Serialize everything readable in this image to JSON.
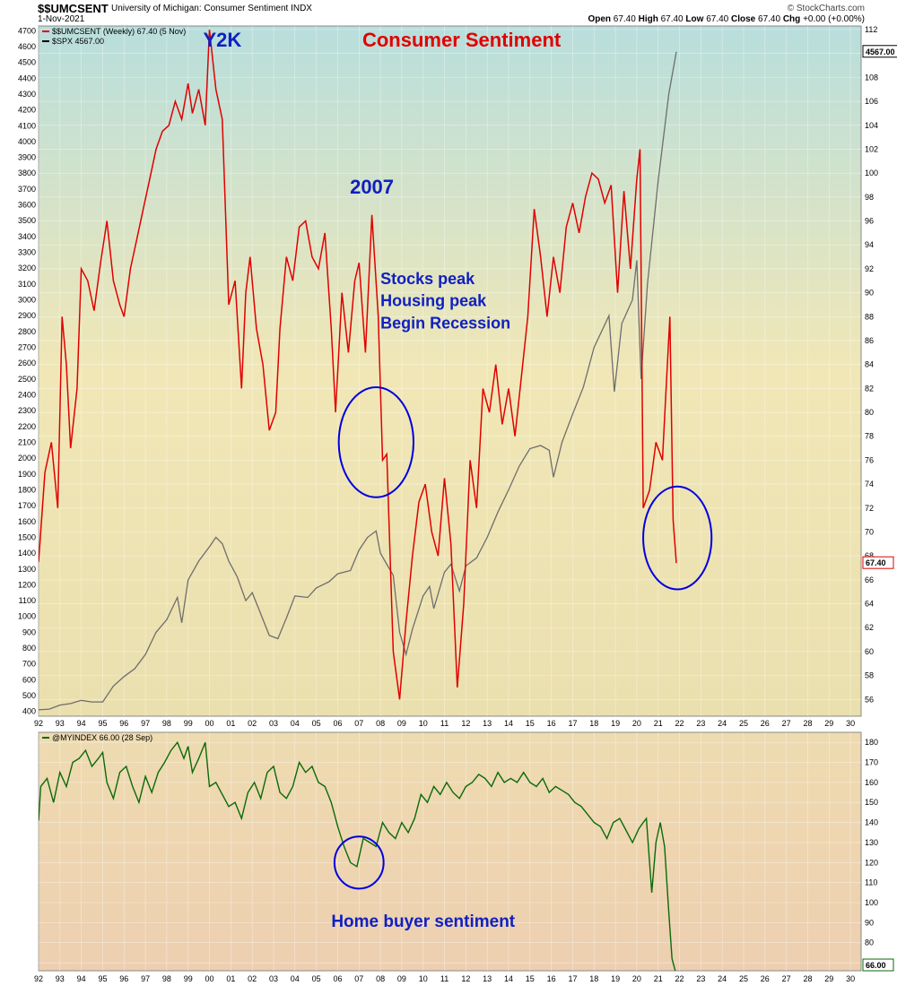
{
  "header": {
    "symbol": "$$UMCSENT",
    "description": "University of Michigan: Consumer Sentiment INDX",
    "date": "1-Nov-2021",
    "logo": "© StockCharts.com",
    "ohlc": {
      "open_label": "Open",
      "open": "67.40",
      "high_label": "High",
      "high": "67.40",
      "low_label": "Low",
      "low": "67.40",
      "close_label": "Close",
      "close": "67.40",
      "chg_label": "Chg",
      "chg": "+0.00 (+0.00%)"
    }
  },
  "colors": {
    "sentiment": "#e00000",
    "spx": "#6e6e6e",
    "myindex": "#0a6a0a",
    "annotation_red": "#e00000",
    "annotation_blue": "#1020c0",
    "circle": "#0000e0"
  },
  "chart_data": [
    {
      "type": "line",
      "legend": [
        {
          "name": "$$UMCSENT (Weekly) 67.40 (5 Nov)",
          "color": "#e00000"
        },
        {
          "name": "$SPX 4567.00",
          "color": "#000000"
        }
      ],
      "title": "Consumer Sentiment",
      "annotations": [
        {
          "text": "Y2K",
          "x": 2000.6,
          "y": 4600,
          "color": "#1020c0"
        },
        {
          "text": "Consumer Sentiment",
          "x": 2011.8,
          "y": 4600,
          "color": "#e00000"
        },
        {
          "text": "2007",
          "x": 2007.6,
          "y": 3670,
          "color": "#1020c0"
        },
        {
          "text": "Stocks peak",
          "x": 2008.0,
          "y": 3100,
          "color": "#1020c0"
        },
        {
          "text": "Housing peak",
          "x": 2008.0,
          "y": 2960,
          "color": "#1020c0"
        },
        {
          "text": "Begin Recession",
          "x": 2008.0,
          "y": 2820,
          "color": "#1020c0"
        }
      ],
      "circles": [
        {
          "cx": 2007.8,
          "cy_right": 77.5,
          "rx_years": 1.75,
          "ry_right": 4.6
        },
        {
          "cx": 2021.9,
          "cy_right": 69.5,
          "rx_years": 1.6,
          "ry_right": 4.3
        }
      ],
      "x_ticks": [
        "92",
        "93",
        "94",
        "95",
        "96",
        "97",
        "98",
        "99",
        "00",
        "01",
        "02",
        "03",
        "04",
        "05",
        "06",
        "07",
        "08",
        "09",
        "10",
        "11",
        "12",
        "13",
        "14",
        "15",
        "16",
        "17",
        "18",
        "19",
        "20",
        "21",
        "22",
        "23",
        "24",
        "25",
        "26",
        "27",
        "28",
        "29",
        "30"
      ],
      "xlim": [
        1992,
        2030.5
      ],
      "left_axis": {
        "label": "SPX",
        "ylim": [
          370,
          4730
        ],
        "ticks": [
          400,
          500,
          600,
          700,
          800,
          900,
          1000,
          1100,
          1200,
          1300,
          1400,
          1500,
          1600,
          1700,
          1800,
          1900,
          2000,
          2100,
          2200,
          2300,
          2400,
          2500,
          2600,
          2700,
          2800,
          2900,
          3000,
          3100,
          3200,
          3300,
          3400,
          3500,
          3600,
          3700,
          3800,
          3900,
          4000,
          4100,
          4200,
          4300,
          4400,
          4500,
          4600,
          4700
        ]
      },
      "right_axis": {
        "label": "UMCSENT",
        "ylim": [
          54.6,
          112.3
        ],
        "ticks": [
          56,
          58,
          60,
          62,
          64,
          66,
          68,
          70,
          72,
          74,
          76,
          78,
          80,
          82,
          84,
          86,
          88,
          90,
          92,
          94,
          96,
          98,
          100,
          102,
          104,
          106,
          108,
          110,
          112
        ]
      },
      "last_labels": {
        "sentiment": "67.40",
        "spx": "4567.00"
      },
      "series": [
        {
          "name": "$$UMCSENT",
          "axis": "right",
          "x": [
            1992.0,
            1992.3,
            1992.6,
            1992.9,
            1993.1,
            1993.3,
            1993.5,
            1993.8,
            1994.0,
            1994.3,
            1994.6,
            1994.9,
            1995.2,
            1995.5,
            1995.8,
            1996.0,
            1996.3,
            1996.6,
            1996.9,
            1997.2,
            1997.5,
            1997.8,
            1998.1,
            1998.4,
            1998.7,
            1999.0,
            1999.2,
            1999.5,
            1999.8,
            2000.0,
            2000.3,
            2000.6,
            2000.9,
            2001.2,
            2001.5,
            2001.7,
            2001.9,
            2002.2,
            2002.5,
            2002.8,
            2003.1,
            2003.3,
            2003.6,
            2003.9,
            2004.2,
            2004.5,
            2004.8,
            2005.1,
            2005.4,
            2005.7,
            2005.9,
            2006.2,
            2006.5,
            2006.8,
            2007.0,
            2007.3,
            2007.6,
            2007.9,
            2008.1,
            2008.3,
            2008.6,
            2008.9,
            2009.2,
            2009.5,
            2009.8,
            2010.1,
            2010.4,
            2010.7,
            2011.0,
            2011.3,
            2011.6,
            2011.9,
            2012.2,
            2012.5,
            2012.8,
            2013.1,
            2013.4,
            2013.7,
            2014.0,
            2014.3,
            2014.6,
            2014.9,
            2015.2,
            2015.5,
            2015.8,
            2016.1,
            2016.4,
            2016.7,
            2017.0,
            2017.3,
            2017.6,
            2017.9,
            2018.2,
            2018.5,
            2018.8,
            2019.1,
            2019.4,
            2019.7,
            2020.0,
            2020.15,
            2020.3,
            2020.6,
            2020.9,
            2021.2,
            2021.4,
            2021.55,
            2021.7,
            2021.85
          ],
          "values": [
            67.5,
            75.0,
            77.5,
            72.0,
            88.0,
            84.0,
            77.0,
            82.0,
            92.0,
            91.0,
            88.5,
            92.5,
            96.0,
            91.0,
            89.0,
            88.0,
            92.0,
            94.5,
            97.0,
            99.5,
            102.0,
            103.5,
            104.0,
            106.0,
            104.5,
            107.5,
            105.0,
            107.0,
            104.0,
            112.0,
            107.0,
            104.5,
            89.0,
            91.0,
            82.0,
            90.0,
            93.0,
            87.0,
            84.0,
            78.5,
            80.0,
            87.0,
            93.0,
            91.0,
            95.5,
            96.0,
            93.0,
            92.0,
            95.0,
            87.0,
            80.0,
            90.0,
            85.0,
            91.0,
            92.5,
            85.0,
            96.5,
            88.0,
            76.0,
            76.5,
            60.0,
            56.0,
            62.5,
            68.0,
            72.5,
            74.0,
            70.0,
            68.0,
            74.5,
            69.0,
            57.0,
            64.0,
            76.0,
            72.0,
            82.0,
            80.0,
            84.0,
            79.0,
            82.0,
            78.0,
            83.0,
            88.0,
            97.0,
            93.0,
            88.0,
            93.0,
            90.0,
            95.5,
            97.5,
            95.0,
            98.0,
            100.0,
            99.5,
            97.5,
            99.0,
            90.0,
            98.5,
            92.0,
            99.5,
            102.0,
            72.0,
            73.5,
            77.5,
            76.0,
            83.0,
            88.0,
            71.0,
            67.4
          ]
        },
        {
          "name": "$SPX",
          "axis": "left",
          "x": [
            1992.0,
            1992.5,
            1993.0,
            1993.5,
            1994.0,
            1994.5,
            1995.0,
            1995.5,
            1996.0,
            1996.5,
            1997.0,
            1997.5,
            1998.0,
            1998.5,
            1998.7,
            1999.0,
            1999.5,
            2000.0,
            2000.3,
            2000.6,
            2000.9,
            2001.3,
            2001.7,
            2002.0,
            2002.3,
            2002.8,
            2003.2,
            2003.6,
            2004.0,
            2004.6,
            2005.0,
            2005.6,
            2006.0,
            2006.6,
            2007.0,
            2007.4,
            2007.8,
            2008.0,
            2008.3,
            2008.6,
            2008.9,
            2009.2,
            2009.5,
            2010.0,
            2010.3,
            2010.5,
            2011.0,
            2011.3,
            2011.7,
            2012.0,
            2012.5,
            2013.0,
            2013.5,
            2014.0,
            2014.5,
            2015.0,
            2015.5,
            2015.9,
            2016.1,
            2016.5,
            2017.0,
            2017.5,
            2018.0,
            2018.7,
            2018.95,
            2019.3,
            2019.8,
            2020.0,
            2020.2,
            2020.5,
            2021.0,
            2021.5,
            2021.85
          ],
          "values": [
            410,
            415,
            440,
            450,
            470,
            460,
            460,
            560,
            620,
            670,
            760,
            900,
            980,
            1120,
            960,
            1230,
            1350,
            1440,
            1500,
            1460,
            1350,
            1250,
            1100,
            1150,
            1050,
            880,
            860,
            990,
            1130,
            1120,
            1180,
            1220,
            1270,
            1290,
            1420,
            1500,
            1540,
            1400,
            1330,
            1260,
            900,
            760,
            920,
            1130,
            1190,
            1050,
            1280,
            1330,
            1160,
            1320,
            1370,
            1500,
            1660,
            1800,
            1950,
            2060,
            2080,
            2050,
            1880,
            2100,
            2280,
            2450,
            2700,
            2900,
            2420,
            2850,
            3000,
            3250,
            2500,
            3100,
            3750,
            4300,
            4567
          ]
        }
      ]
    },
    {
      "type": "line",
      "legend": [
        {
          "name": "@MYINDEX 66.00 (28 Sep)",
          "color": "#0a6a0a"
        }
      ],
      "annotations": [
        {
          "text": "Home buyer sentiment",
          "x": 2010.0,
          "y": 88,
          "color": "#1020c0"
        }
      ],
      "circles": [
        {
          "cx": 2007.0,
          "cy": 120,
          "rx_years": 1.15,
          "ry": 13
        }
      ],
      "x_ticks": [
        "92",
        "93",
        "94",
        "95",
        "96",
        "97",
        "98",
        "99",
        "00",
        "01",
        "02",
        "03",
        "04",
        "05",
        "06",
        "07",
        "08",
        "09",
        "10",
        "11",
        "12",
        "13",
        "14",
        "15",
        "16",
        "17",
        "18",
        "19",
        "20",
        "21",
        "22",
        "23",
        "24",
        "25",
        "26",
        "27",
        "28",
        "29",
        "30"
      ],
      "xlim": [
        1992,
        2030.5
      ],
      "ylim": [
        66,
        185
      ],
      "right_ticks": [
        70,
        80,
        90,
        100,
        110,
        120,
        130,
        140,
        150,
        160,
        170,
        180
      ],
      "last_label": "66.00",
      "series": [
        {
          "name": "@MYINDEX",
          "x": [
            1992.0,
            1992.1,
            1992.4,
            1992.7,
            1993.0,
            1993.3,
            1993.6,
            1993.9,
            1994.2,
            1994.5,
            1994.8,
            1995.0,
            1995.2,
            1995.5,
            1995.8,
            1996.1,
            1996.4,
            1996.7,
            1997.0,
            1997.3,
            1997.6,
            1997.9,
            1998.2,
            1998.5,
            1998.8,
            1999.0,
            1999.2,
            1999.5,
            1999.8,
            2000.0,
            2000.3,
            2000.6,
            2000.9,
            2001.2,
            2001.5,
            2001.8,
            2002.1,
            2002.4,
            2002.7,
            2003.0,
            2003.3,
            2003.6,
            2003.9,
            2004.2,
            2004.5,
            2004.8,
            2005.1,
            2005.4,
            2005.7,
            2006.0,
            2006.3,
            2006.6,
            2006.9,
            2007.2,
            2007.5,
            2007.8,
            2008.1,
            2008.4,
            2008.7,
            2009.0,
            2009.3,
            2009.6,
            2009.9,
            2010.2,
            2010.5,
            2010.8,
            2011.1,
            2011.4,
            2011.7,
            2012.0,
            2012.3,
            2012.6,
            2012.9,
            2013.2,
            2013.5,
            2013.8,
            2014.1,
            2014.4,
            2014.7,
            2015.0,
            2015.3,
            2015.6,
            2015.9,
            2016.2,
            2016.5,
            2016.8,
            2017.1,
            2017.4,
            2017.7,
            2018.0,
            2018.3,
            2018.6,
            2018.9,
            2019.2,
            2019.5,
            2019.8,
            2020.1,
            2020.3,
            2020.45,
            2020.7,
            2020.9,
            2021.1,
            2021.3,
            2021.5,
            2021.65,
            2021.8
          ],
          "values": [
            141,
            158,
            162,
            150,
            165,
            158,
            170,
            172,
            176,
            168,
            172,
            175,
            160,
            152,
            165,
            168,
            158,
            150,
            163,
            155,
            165,
            170,
            176,
            180,
            172,
            178,
            165,
            172,
            180,
            158,
            160,
            154,
            148,
            150,
            142,
            155,
            160,
            152,
            165,
            168,
            155,
            152,
            158,
            170,
            165,
            168,
            160,
            158,
            150,
            138,
            128,
            120,
            118,
            132,
            130,
            128,
            140,
            135,
            132,
            140,
            135,
            142,
            154,
            150,
            158,
            154,
            160,
            155,
            152,
            158,
            160,
            164,
            162,
            158,
            165,
            160,
            162,
            160,
            165,
            160,
            158,
            162,
            155,
            158,
            156,
            154,
            150,
            148,
            144,
            140,
            138,
            132,
            140,
            142,
            136,
            130,
            137,
            140,
            142,
            105,
            130,
            140,
            128,
            95,
            72,
            66
          ]
        }
      ]
    }
  ]
}
